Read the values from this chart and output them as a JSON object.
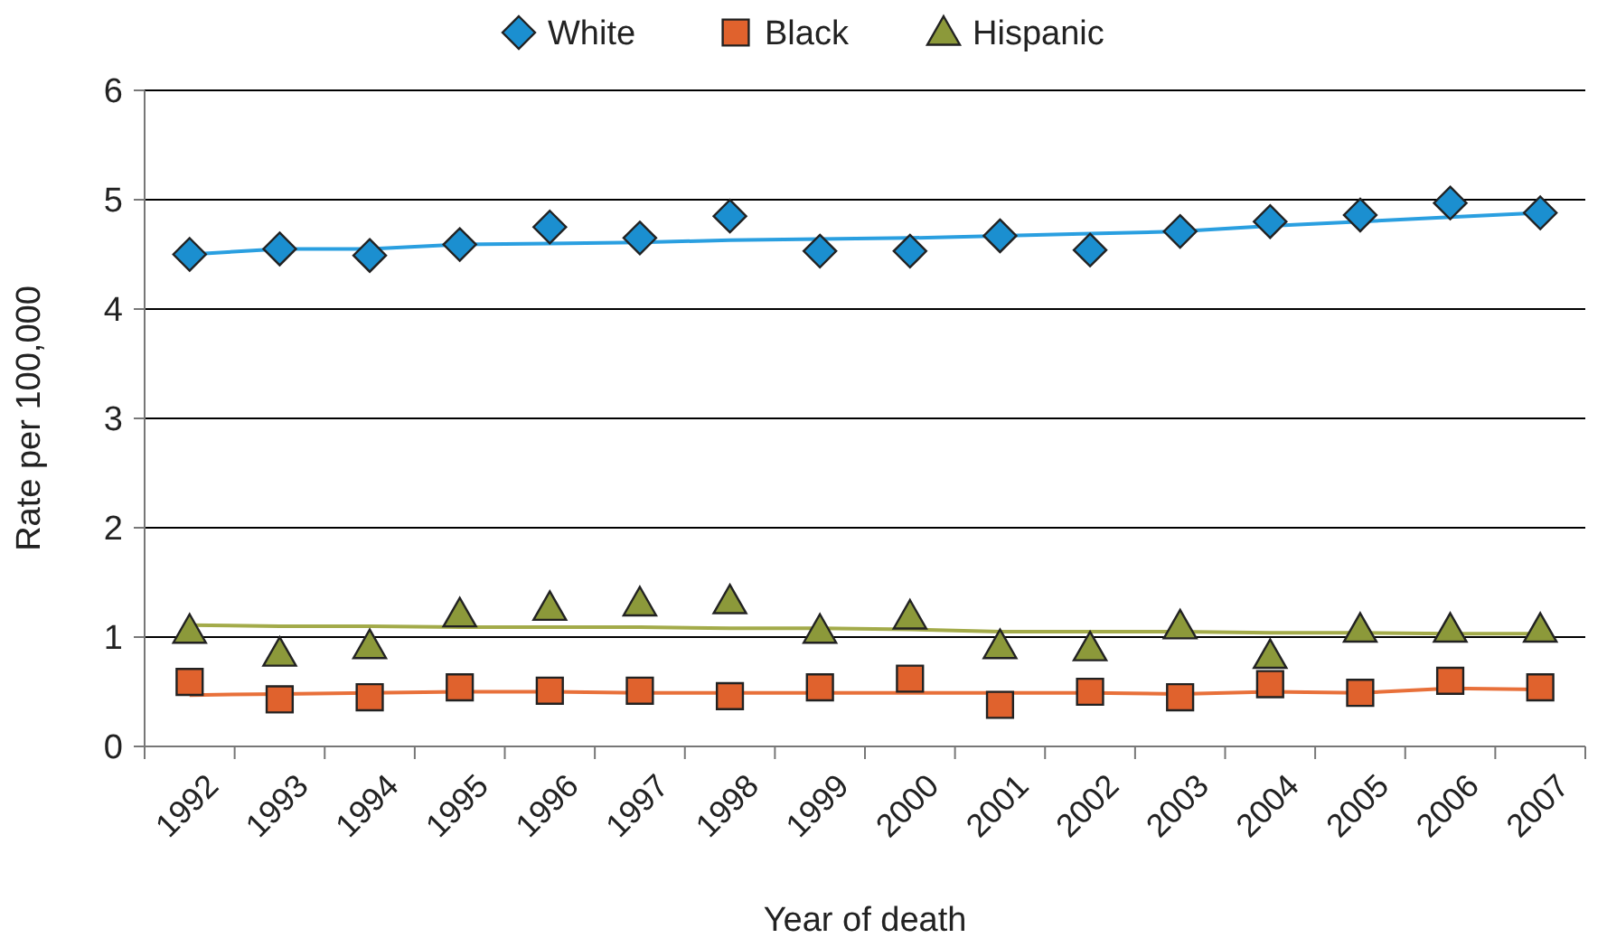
{
  "chart_data": {
    "type": "scatter",
    "xlabel": "Year of death",
    "ylabel": "Rate per 100,000",
    "categories": [
      "1992",
      "1993",
      "1994",
      "1995",
      "1996",
      "1997",
      "1998",
      "1999",
      "2000",
      "2001",
      "2002",
      "2003",
      "2004",
      "2005",
      "2006",
      "2007"
    ],
    "ylim": [
      0,
      6
    ],
    "yticks": [
      0,
      1,
      2,
      3,
      4,
      5,
      6
    ],
    "grid": "y",
    "legend": "top",
    "series": [
      {
        "name": "White",
        "marker": "diamond",
        "color": "#1b8fd0",
        "values": [
          4.5,
          4.55,
          4.49,
          4.59,
          4.75,
          4.65,
          4.85,
          4.53,
          4.53,
          4.67,
          4.54,
          4.71,
          4.8,
          4.86,
          4.97,
          4.88
        ]
      },
      {
        "name": "Black",
        "marker": "square",
        "color": "#e0622d",
        "values": [
          0.59,
          0.43,
          0.45,
          0.54,
          0.51,
          0.51,
          0.46,
          0.54,
          0.62,
          0.38,
          0.5,
          0.45,
          0.57,
          0.49,
          0.6,
          0.54
        ]
      },
      {
        "name": "Hispanic",
        "marker": "triangle",
        "color": "#8c993a",
        "values": [
          1.06,
          0.85,
          0.92,
          1.21,
          1.27,
          1.31,
          1.33,
          1.06,
          1.19,
          0.92,
          0.9,
          1.1,
          0.83,
          1.07,
          1.07,
          1.07
        ]
      },
      {
        "type": "line",
        "color": "#2a9fe0",
        "values": [
          4.5,
          4.55,
          4.55,
          4.59,
          4.6,
          4.61,
          4.63,
          4.64,
          4.65,
          4.67,
          4.69,
          4.71,
          4.76,
          4.8,
          4.84,
          4.88
        ]
      },
      {
        "type": "line",
        "color": "#e8703a",
        "values": [
          0.47,
          0.48,
          0.49,
          0.5,
          0.5,
          0.49,
          0.49,
          0.49,
          0.49,
          0.49,
          0.49,
          0.48,
          0.5,
          0.49,
          0.53,
          0.52
        ]
      },
      {
        "type": "line",
        "color": "#a3ab4a",
        "values": [
          1.11,
          1.1,
          1.1,
          1.09,
          1.09,
          1.09,
          1.08,
          1.08,
          1.07,
          1.05,
          1.05,
          1.05,
          1.04,
          1.04,
          1.03,
          1.03
        ]
      }
    ]
  }
}
